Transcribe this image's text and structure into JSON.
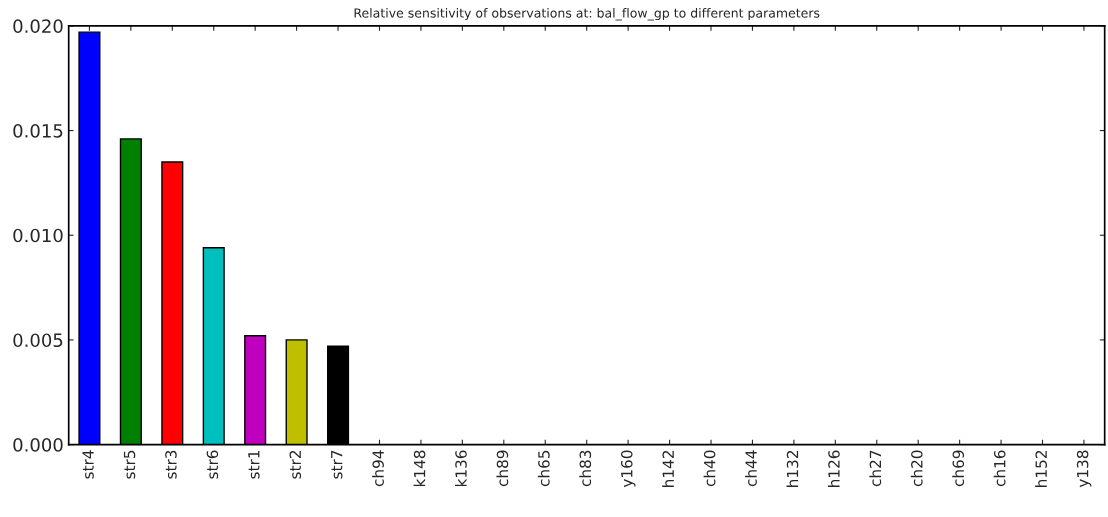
{
  "chart_data": {
    "type": "bar",
    "title": "Relative sensitivity of observations at: bal_flow_gp to different parameters",
    "categories": [
      "str4",
      "str5",
      "str3",
      "str6",
      "str1",
      "str2",
      "str7",
      "ch94",
      "k148",
      "k136",
      "ch89",
      "ch65",
      "ch83",
      "y160",
      "h142",
      "ch40",
      "ch44",
      "h132",
      "h126",
      "ch27",
      "ch20",
      "ch69",
      "ch16",
      "h152",
      "y138"
    ],
    "values": [
      0.0197,
      0.0146,
      0.0135,
      0.0094,
      0.0052,
      0.005,
      0.0047,
      0,
      0,
      0,
      0,
      0,
      0,
      0,
      0,
      0,
      0,
      0,
      0,
      0,
      0,
      0,
      0,
      0,
      0
    ],
    "colors": [
      "#0000ff",
      "#008000",
      "#ff0000",
      "#00bfbf",
      "#bf00bf",
      "#bfbf00",
      "#000000",
      "#000000",
      "#000000",
      "#000000",
      "#000000",
      "#000000",
      "#000000",
      "#000000",
      "#000000",
      "#000000",
      "#000000",
      "#000000",
      "#000000",
      "#000000",
      "#000000",
      "#000000",
      "#000000",
      "#000000",
      "#000000"
    ],
    "ylim": [
      0,
      0.02
    ],
    "yticks": [
      {
        "value": 0,
        "label": "0.000"
      },
      {
        "value": 0.005,
        "label": "0.005"
      },
      {
        "value": 0.01,
        "label": "0.010"
      },
      {
        "value": 0.015,
        "label": "0.015"
      },
      {
        "value": 0.02,
        "label": "0.020"
      }
    ],
    "grid": false
  }
}
